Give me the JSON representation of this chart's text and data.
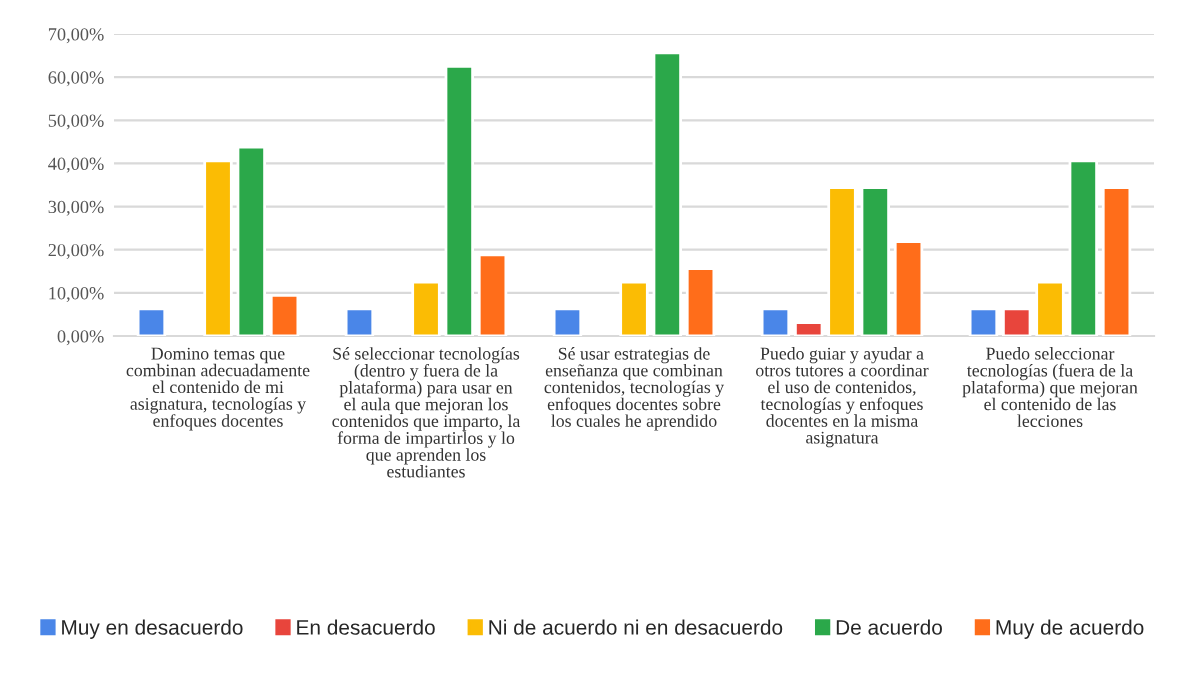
{
  "chart_data": {
    "type": "bar",
    "categories": [
      "Domino temas que\ncombinan adecuadamente\nel contenido de mi\nasignatura, tecnologías y\nenfoques docentes",
      "Sé seleccionar tecnologías\n(dentro y fuera de la\nplataforma) para usar en\nel aula que mejoran los\ncontenidos que imparto, la\nforma de impartirlos y lo\nque aprenden los\nestudiantes",
      "Sé usar estrategias de\nenseñanza que combinan\ncontenidos, tecnologías y\nenfoques docentes sobre\nlos cuales he aprendido",
      "Puedo guiar y ayudar a\notros tutores a coordinar\nel uso de contenidos,\ntecnologías y enfoques\ndocentes en la misma\nasignatura",
      "Puedo seleccionar\ntecnologías (fuera de la\nplataforma) que mejoran\nel contenido de las\nlecciones"
    ],
    "series": [
      {
        "name": "Muy en desacuerdo",
        "color": "#4a86e8",
        "values": [
          6.3,
          6.3,
          6.3,
          6.3,
          6.3
        ]
      },
      {
        "name": "En desacuerdo",
        "color": "#e8453c",
        "values": [
          null,
          null,
          null,
          3.1,
          6.3
        ]
      },
      {
        "name": "Ni de acuerdo ni en desacuerdo",
        "color": "#fbbc04",
        "values": [
          40.6,
          12.5,
          12.5,
          34.4,
          12.5
        ]
      },
      {
        "name": "De acuerdo",
        "color": "#2ba84a",
        "values": [
          43.8,
          62.5,
          65.6,
          34.4,
          40.6
        ]
      },
      {
        "name": "Muy de acuerdo",
        "color": "#ff6d1a",
        "values": [
          9.4,
          18.8,
          15.6,
          21.9,
          34.4
        ]
      }
    ],
    "ylim": [
      0,
      70
    ],
    "yticks": [
      {
        "value": 0,
        "label": "0,00%"
      },
      {
        "value": 10,
        "label": "10,00%"
      },
      {
        "value": 20,
        "label": "20,00%"
      },
      {
        "value": 30,
        "label": "30,00%"
      },
      {
        "value": 40,
        "label": "40,00%"
      },
      {
        "value": 50,
        "label": "50,00%"
      },
      {
        "value": 60,
        "label": "60,00%"
      },
      {
        "value": 70,
        "label": "70,00%"
      }
    ],
    "grid": "y",
    "legend": "bottom"
  }
}
